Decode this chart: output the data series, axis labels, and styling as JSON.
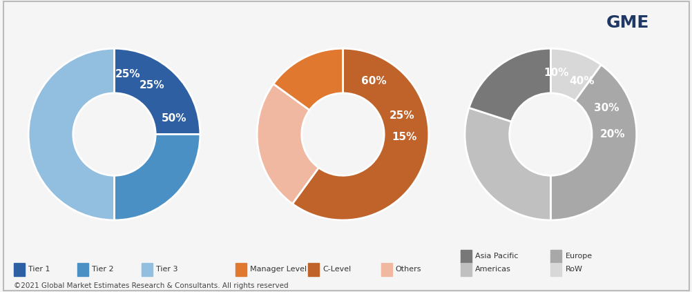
{
  "chart1": {
    "labels": [
      "Tier 1",
      "Tier 2",
      "Tier 3"
    ],
    "values": [
      25,
      25,
      50
    ],
    "colors": [
      "#2E5FA3",
      "#4A90C4",
      "#92BEE0"
    ],
    "text_labels": [
      "25%",
      "25%",
      "50%"
    ],
    "start_angle": 90,
    "order_cw": true
  },
  "chart2": {
    "labels": [
      "C-Level",
      "Others",
      "Manager Level"
    ],
    "values": [
      60,
      25,
      15
    ],
    "colors": [
      "#C0632A",
      "#F0B8A0",
      "#E07830"
    ],
    "text_labels": [
      "60%",
      "25%",
      "15%"
    ],
    "start_angle": 90,
    "order_cw": true
  },
  "chart3": {
    "labels": [
      "Europe",
      "Americas",
      "Asia Pacific",
      "RoW"
    ],
    "values": [
      40,
      30,
      20,
      10
    ],
    "colors": [
      "#A8A8A8",
      "#C0C0C0",
      "#787878",
      "#D8D8D8"
    ],
    "text_labels": [
      "40%",
      "30%",
      "20%",
      "10%"
    ],
    "start_angle": 90,
    "order_cw": true
  },
  "legend1": {
    "labels": [
      "Tier 1",
      "Tier 2",
      "Tier 3"
    ],
    "colors": [
      "#2E5FA3",
      "#4A90C4",
      "#92BEE0"
    ]
  },
  "legend2": {
    "labels": [
      "Manager Level",
      "C-Level",
      "Others"
    ],
    "colors": [
      "#E07830",
      "#C0632A",
      "#F0B8A0"
    ]
  },
  "legend3": {
    "labels": [
      "Asia Pacific",
      "Europe",
      "Americas",
      "RoW"
    ],
    "colors": [
      "#787878",
      "#A8A8A8",
      "#C0C0C0",
      "#D8D8D8"
    ]
  },
  "footer": "©2021 Global Market Estimates Research & Consultants. All rights reserved",
  "background_color": "#F5F5F5",
  "border_color": "#BBBBBB",
  "donut_width": 0.52,
  "label_r": 0.72,
  "label_fontsize": 11
}
